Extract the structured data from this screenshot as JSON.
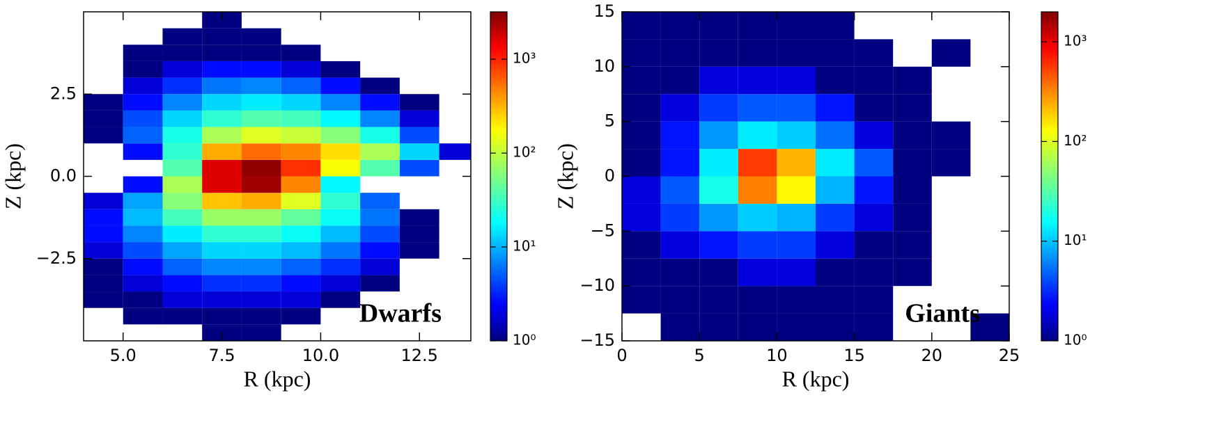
{
  "chart_data": [
    {
      "type": "heatmap",
      "xlabel": "R (kpc)",
      "ylabel": "Z (kpc)",
      "annotation": "Dwarfs",
      "xlim": [
        4,
        13.8
      ],
      "ylim": [
        -5,
        5
      ],
      "xticks": [
        {
          "value": 5,
          "label": "5.0"
        },
        {
          "value": 7.5,
          "label": "7.5"
        },
        {
          "value": 10,
          "label": "10.0"
        },
        {
          "value": 12.5,
          "label": "12.5"
        }
      ],
      "yticks": [
        {
          "value": 2.5,
          "label": "2.5"
        },
        {
          "value": 0,
          "label": "0.0"
        },
        {
          "value": -2.5,
          "label": "−2.5"
        }
      ],
      "colormap": "jet",
      "color_scale": "log",
      "clim": [
        1,
        3200
      ],
      "cticks": [
        {
          "value": 1,
          "label": "10⁰"
        },
        {
          "value": 10,
          "label": "10¹"
        },
        {
          "value": 100,
          "label": "10²"
        },
        {
          "value": 1000,
          "label": "10³"
        }
      ],
      "x_edges": [
        4,
        5,
        6,
        7,
        8,
        9,
        10,
        11,
        12,
        13,
        14
      ],
      "y_edges": [
        -5,
        -4.5,
        -4,
        -3.5,
        -3,
        -2.5,
        -2,
        -1.5,
        -1,
        -0.5,
        0,
        0.5,
        1,
        1.5,
        2,
        2.5,
        3,
        3.5,
        4,
        4.5,
        5
      ],
      "counts": [
        [
          null,
          null,
          null,
          1,
          1,
          null,
          null,
          null,
          null,
          null
        ],
        [
          null,
          1,
          1,
          1,
          1,
          1,
          null,
          null,
          null,
          null
        ],
        [
          1,
          1,
          2,
          2,
          2,
          2,
          1,
          null,
          null,
          null
        ],
        [
          1,
          2,
          3,
          4,
          4,
          3,
          2,
          1,
          null,
          null
        ],
        [
          1,
          3,
          6,
          8,
          8,
          6,
          4,
          2,
          null,
          null
        ],
        [
          2,
          5,
          10,
          15,
          15,
          12,
          7,
          3,
          1,
          null
        ],
        [
          3,
          8,
          18,
          30,
          30,
          22,
          12,
          5,
          1,
          null
        ],
        [
          3,
          12,
          35,
          70,
          70,
          45,
          22,
          7,
          1,
          null
        ],
        [
          2,
          10,
          60,
          250,
          300,
          120,
          30,
          6,
          null,
          null
        ],
        [
          null,
          3,
          80,
          1500,
          2500,
          400,
          20,
          null,
          null,
          null
        ],
        [
          null,
          null,
          40,
          1500,
          2800,
          800,
          150,
          40,
          5,
          null
        ],
        [
          null,
          3,
          30,
          300,
          500,
          400,
          200,
          80,
          15,
          2
        ],
        [
          1,
          6,
          25,
          80,
          120,
          100,
          60,
          25,
          5,
          null
        ],
        [
          1,
          5,
          15,
          30,
          40,
          35,
          20,
          8,
          2,
          null
        ],
        [
          1,
          3,
          8,
          15,
          18,
          15,
          8,
          3,
          1,
          null
        ],
        [
          null,
          2,
          4,
          7,
          8,
          6,
          3,
          1,
          null,
          null
        ],
        [
          null,
          1,
          2,
          3,
          3,
          2,
          1,
          null,
          null,
          null
        ],
        [
          null,
          1,
          1,
          1,
          1,
          1,
          null,
          null,
          null,
          null
        ],
        [
          null,
          null,
          1,
          1,
          1,
          null,
          null,
          null,
          null,
          null
        ],
        [
          null,
          null,
          null,
          1,
          null,
          null,
          null,
          null,
          null,
          null
        ]
      ]
    },
    {
      "type": "heatmap",
      "xlabel": "R (kpc)",
      "ylabel": "Z (kpc)",
      "annotation": "Giants",
      "xlim": [
        0,
        25
      ],
      "ylim": [
        -15,
        15
      ],
      "xticks": [
        0,
        5,
        10,
        15,
        20,
        25
      ],
      "yticks": [
        15,
        10,
        5,
        0,
        {
          "value": -5,
          "label": "−5"
        },
        {
          "value": -10,
          "label": "−10"
        },
        {
          "value": -15,
          "label": "−15"
        }
      ],
      "colormap": "jet",
      "color_scale": "log",
      "clim": [
        1,
        2000
      ],
      "cticks": [
        {
          "value": 1,
          "label": "10⁰"
        },
        {
          "value": 10,
          "label": "10¹"
        },
        {
          "value": 100,
          "label": "10²"
        },
        {
          "value": 1000,
          "label": "10³"
        }
      ],
      "x_edges": [
        0,
        2.5,
        5,
        7.5,
        10,
        12.5,
        15,
        17.5,
        20,
        22.5,
        25
      ],
      "y_edges": [
        -15,
        -12.5,
        -10,
        -7.5,
        -5,
        -2.5,
        0,
        2.5,
        5,
        7.5,
        10,
        12.5,
        15
      ],
      "counts": [
        [
          null,
          1,
          1,
          1,
          1,
          1,
          1,
          null,
          null,
          1
        ],
        [
          1,
          1,
          1,
          1,
          1,
          1,
          1,
          null,
          null,
          null
        ],
        [
          1,
          1,
          1,
          2,
          2,
          1,
          1,
          1,
          null,
          null
        ],
        [
          1,
          2,
          3,
          4,
          4,
          2,
          1,
          1,
          null,
          null
        ],
        [
          2,
          4,
          8,
          12,
          10,
          4,
          2,
          1,
          null,
          null
        ],
        [
          2,
          5,
          20,
          300,
          120,
          10,
          3,
          1,
          null,
          null
        ],
        [
          1,
          3,
          15,
          500,
          200,
          15,
          5,
          1,
          1,
          null
        ],
        [
          1,
          3,
          8,
          15,
          12,
          6,
          2,
          1,
          1,
          null
        ],
        [
          1,
          2,
          4,
          5,
          5,
          3,
          1,
          1,
          null,
          null
        ],
        [
          1,
          1,
          2,
          2,
          2,
          1,
          1,
          1,
          null,
          null
        ],
        [
          1,
          1,
          1,
          1,
          1,
          1,
          1,
          null,
          1,
          null
        ],
        [
          1,
          1,
          1,
          1,
          1,
          1,
          null,
          null,
          null,
          null
        ]
      ]
    }
  ]
}
